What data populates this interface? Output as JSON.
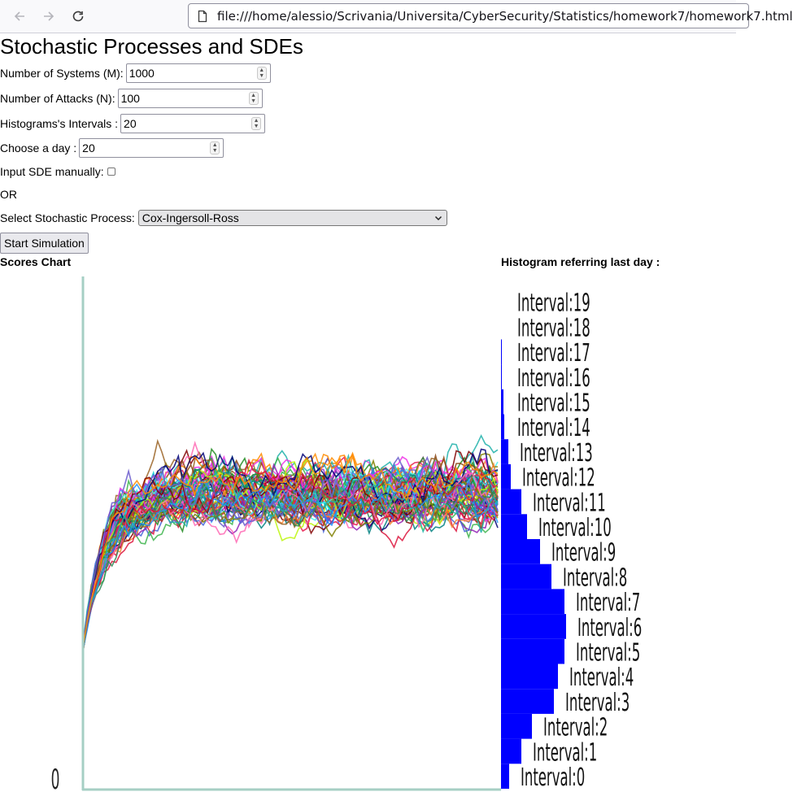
{
  "browser": {
    "url": "file:///home/alessio/Scrivania/Universita/CyberSecurity/Statistics/homework7/homework7.html",
    "back_icon": "arrow-left-icon",
    "forward_icon": "arrow-right-icon",
    "reload_icon": "reload-icon",
    "file_icon": "file-icon"
  },
  "page": {
    "title": "Stochastic Processes and SDEs"
  },
  "form": {
    "systems_label": "Number of Systems (M):",
    "systems_value": "1000",
    "attacks_label": "Number of Attacks (N):",
    "attacks_value": "100",
    "intervals_label": "Histograms's Intervals :",
    "intervals_value": "20",
    "day_label": "Choose a day :",
    "day_value": "20",
    "manual_label": "Input SDE manually:",
    "manual_checked": false,
    "or_text": "OR",
    "process_label": "Select Stochastic Process:",
    "process_value": "Cox-Ingersoll-Ross",
    "start_button": "Start Simulation"
  },
  "charts": {
    "scores_title": "Scores Chart",
    "histogram_title": "Histogram referring last day :",
    "y_zero_label": "0",
    "accent_axis": "#a6cfc4",
    "histogram_color": "#0000ff"
  },
  "chart_data": [
    {
      "type": "line",
      "title": "Scores Chart",
      "series_count": 1000,
      "x": [
        0,
        100
      ],
      "ylim": [
        0,
        null
      ],
      "tick_labels": [
        "0"
      ],
      "description_values": {
        "start": 0,
        "plateau_low": 60,
        "plateau_high": 100
      }
    },
    {
      "type": "bar",
      "orientation": "horizontal",
      "title": "Histogram referring last day :",
      "categories": [
        "Interval:0",
        "Interval:1",
        "Interval:2",
        "Interval:3",
        "Interval:4",
        "Interval:5",
        "Interval:6",
        "Interval:7",
        "Interval:8",
        "Interval:9",
        "Interval:10",
        "Interval:11",
        "Interval:12",
        "Interval:13",
        "Interval:14",
        "Interval:15",
        "Interval:16",
        "Interval:17",
        "Interval:18",
        "Interval:19"
      ],
      "values": [
        10,
        25,
        38,
        65,
        70,
        78,
        80,
        78,
        62,
        48,
        32,
        25,
        12,
        9,
        4,
        3,
        1,
        1,
        0,
        0
      ]
    }
  ]
}
